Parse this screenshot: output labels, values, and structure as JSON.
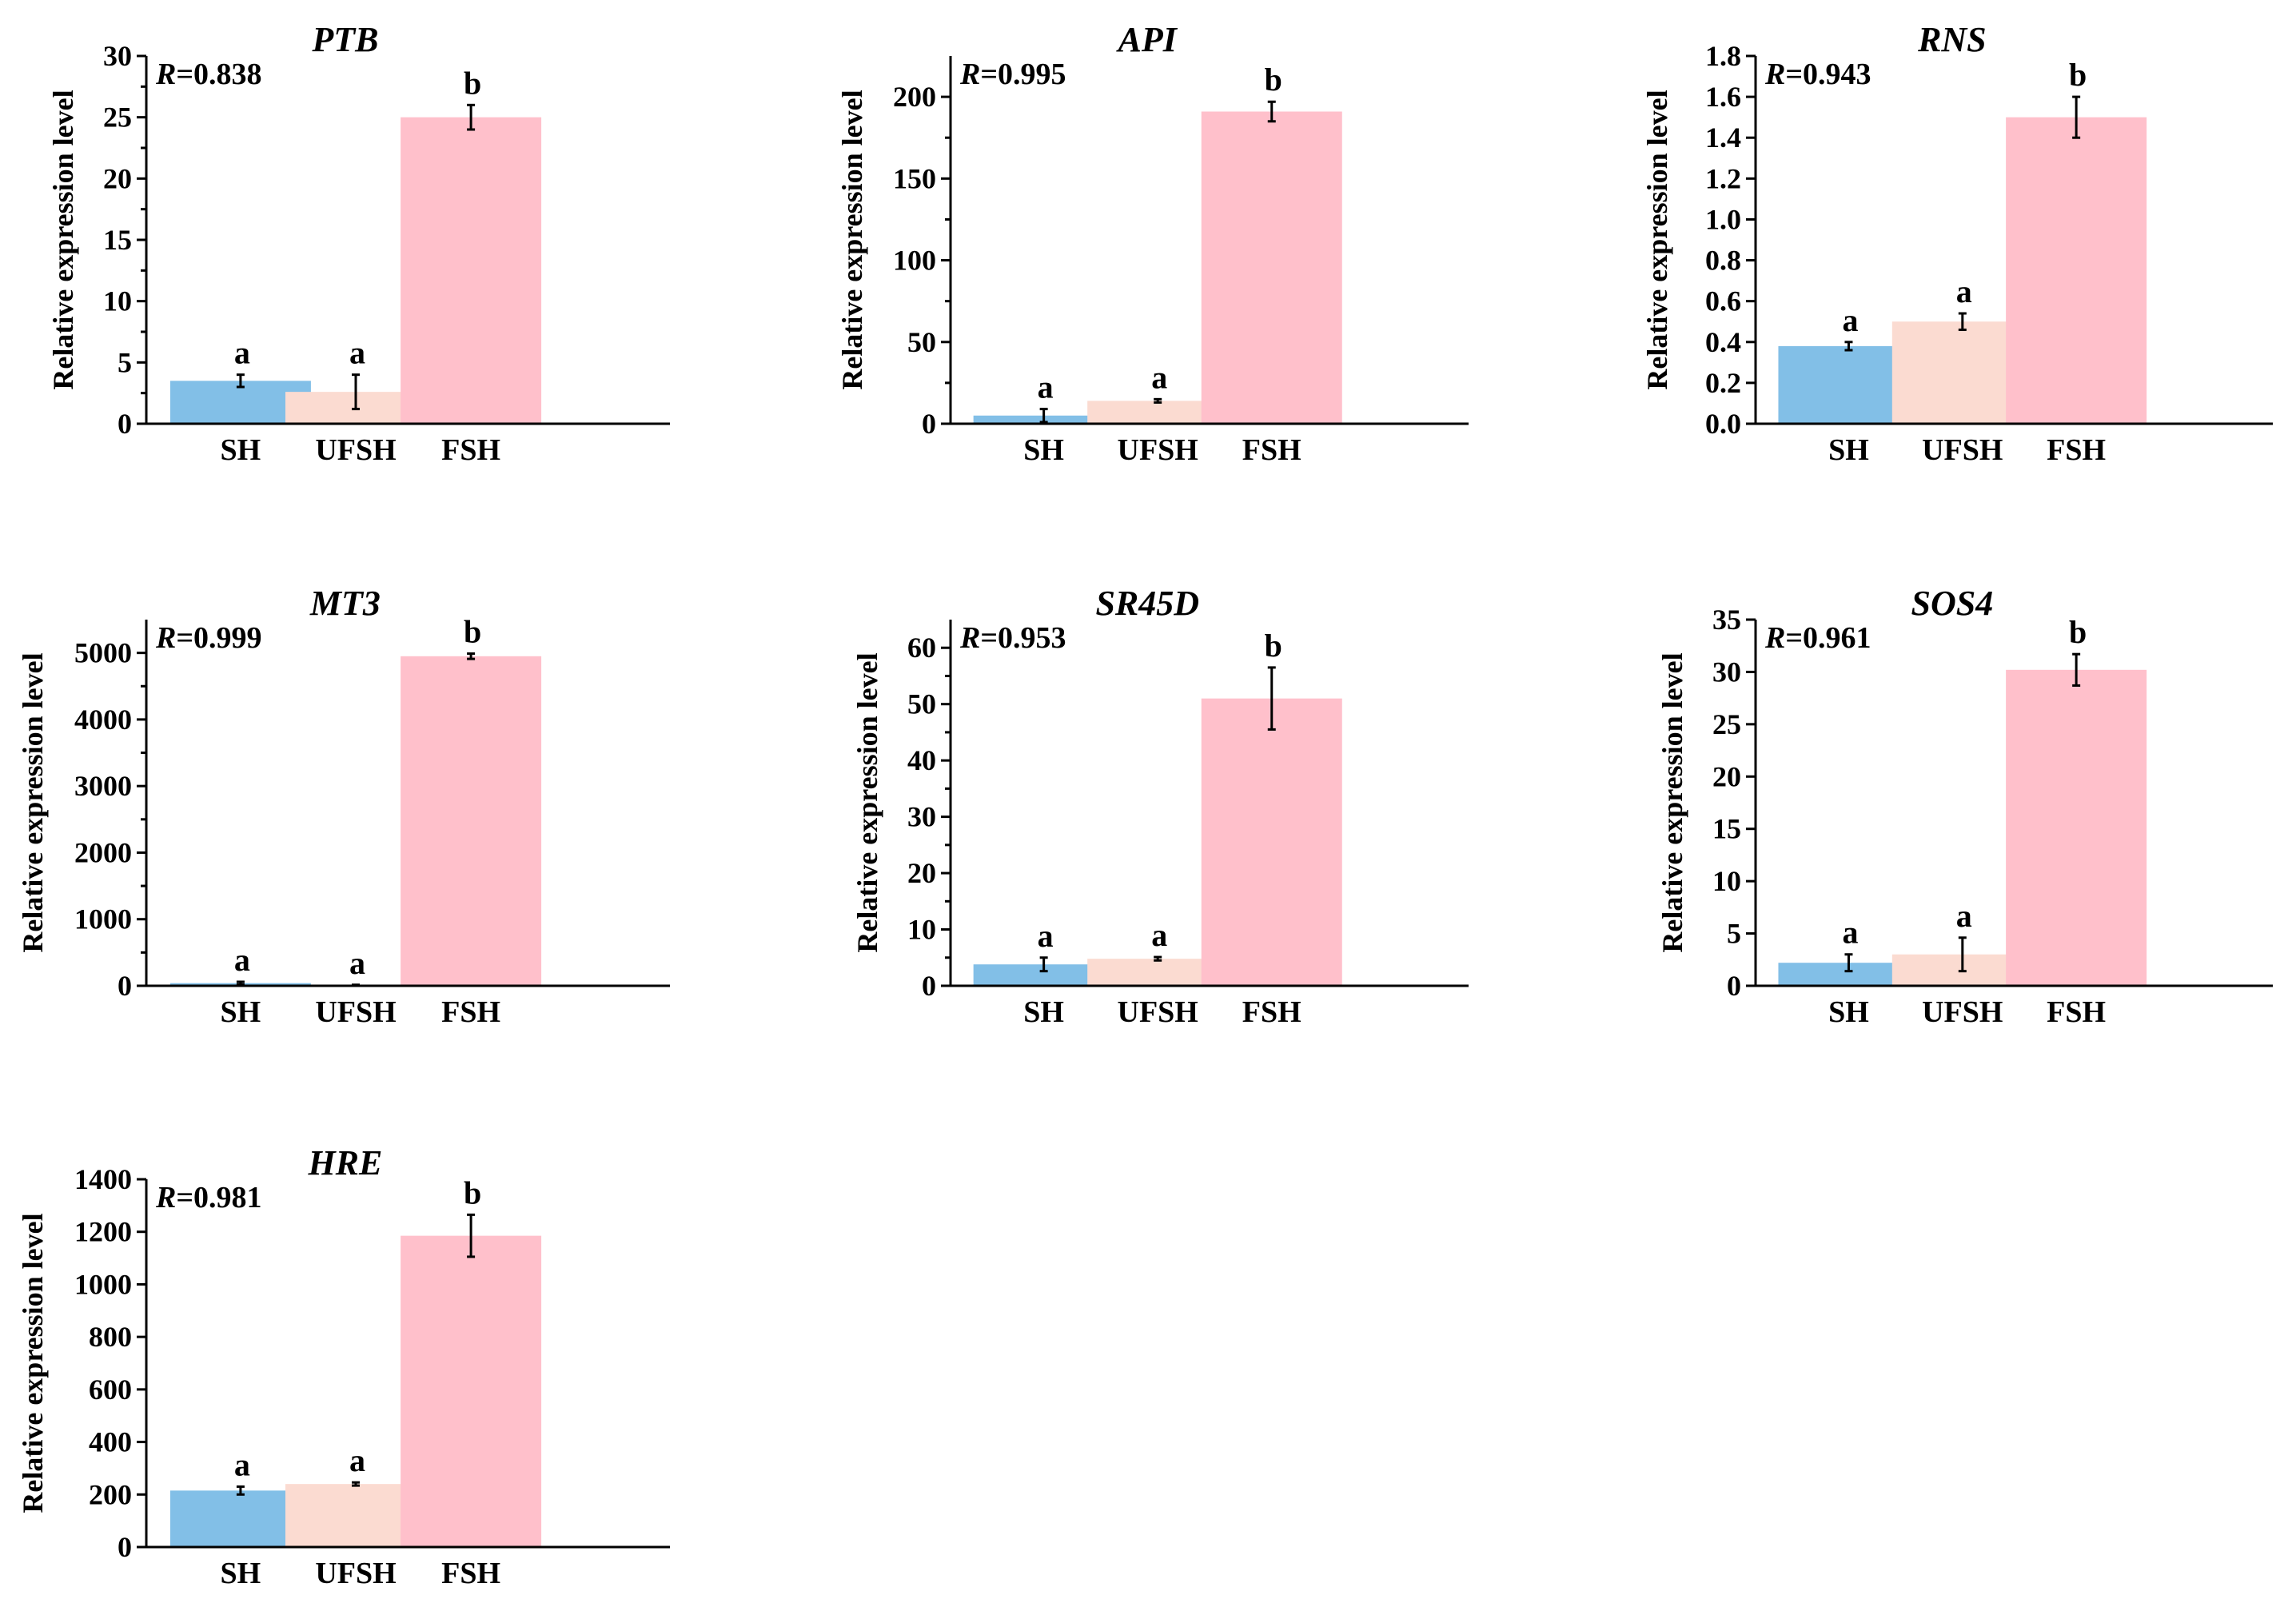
{
  "figure": {
    "colors": {
      "SH": "#82bfe7",
      "UFSH": "#fbdbd1",
      "FSH": "#ffc0cb",
      "axis": "#000000"
    },
    "r_prefix": "R",
    "panels": [
      {
        "title": "PTB",
        "r_value": "=0.838",
        "ylabel": "Relative expression level",
        "categories": [
          "SH",
          "UFSH",
          "FSH"
        ],
        "values": [
          3.5,
          2.6,
          25.0
        ],
        "errors": [
          0.5,
          1.4,
          1.0
        ],
        "significance": [
          "a",
          "a",
          "b"
        ],
        "ylim": [
          0,
          30
        ],
        "yticks": [
          0,
          5,
          10,
          15,
          20,
          25,
          30
        ],
        "ytick_labels": [
          "0",
          "5",
          "10",
          "15",
          "20",
          "25",
          "30"
        ],
        "minor_ticks": true
      },
      {
        "title": "API",
        "r_value": "=0.995",
        "ylabel": "Relative expression level",
        "categories": [
          "SH",
          "UFSH",
          "FSH"
        ],
        "values": [
          5.0,
          14.0,
          191.0
        ],
        "errors": [
          4.0,
          1.0,
          6.0
        ],
        "significance": [
          "a",
          "a",
          "b"
        ],
        "ylim": [
          0,
          225
        ],
        "yticks": [
          0,
          50,
          100,
          150,
          200
        ],
        "ytick_labels": [
          "0",
          "50",
          "100",
          "150",
          "200"
        ],
        "minor_ticks": true
      },
      {
        "title": "RNS",
        "r_value": "=0.943",
        "ylabel": "Relative expression level",
        "categories": [
          "SH",
          "UFSH",
          "FSH"
        ],
        "values": [
          0.38,
          0.5,
          1.5
        ],
        "errors": [
          0.02,
          0.04,
          0.1
        ],
        "significance": [
          "a",
          "a",
          "b"
        ],
        "ylim": [
          0,
          1.8
        ],
        "yticks": [
          0,
          0.2,
          0.4,
          0.6,
          0.8,
          1.0,
          1.2,
          1.4,
          1.6,
          1.8
        ],
        "ytick_labels": [
          "0.0",
          "0.2",
          "0.4",
          "0.6",
          "0.8",
          "1.0",
          "1.2",
          "1.4",
          "1.6",
          "1.8"
        ],
        "minor_ticks": false
      },
      {
        "title": "MT3",
        "r_value": "=0.999",
        "ylabel": "Relative expression level",
        "categories": [
          "SH",
          "UFSH",
          "FSH"
        ],
        "values": [
          40,
          10,
          4950
        ],
        "errors": [
          20,
          5,
          40
        ],
        "significance": [
          "a",
          "a",
          "b"
        ],
        "ylim": [
          0,
          5500
        ],
        "yticks": [
          0,
          1000,
          2000,
          3000,
          4000,
          5000
        ],
        "ytick_labels": [
          "0",
          "1000",
          "2000",
          "3000",
          "4000",
          "5000"
        ],
        "minor_ticks": true
      },
      {
        "title": "SR45D",
        "r_value": "=0.953",
        "ylabel": "Relative expression level",
        "categories": [
          "SH",
          "UFSH",
          "FSH"
        ],
        "values": [
          3.8,
          4.8,
          51.0
        ],
        "errors": [
          1.2,
          0.3,
          5.5
        ],
        "significance": [
          "a",
          "a",
          "b"
        ],
        "ylim": [
          0,
          65
        ],
        "yticks": [
          0,
          10,
          20,
          30,
          40,
          50,
          60
        ],
        "ytick_labels": [
          "0",
          "10",
          "20",
          "30",
          "40",
          "50",
          "60"
        ],
        "minor_ticks": true
      },
      {
        "title": "SOS4",
        "r_value": "=0.961",
        "ylabel": "Relative expression level",
        "categories": [
          "SH",
          "UFSH",
          "FSH"
        ],
        "values": [
          2.2,
          3.0,
          30.2
        ],
        "errors": [
          0.8,
          1.6,
          1.5
        ],
        "significance": [
          "a",
          "a",
          "b"
        ],
        "ylim": [
          0,
          35
        ],
        "yticks": [
          0,
          5,
          10,
          15,
          20,
          25,
          30,
          35
        ],
        "ytick_labels": [
          "0",
          "5",
          "10",
          "15",
          "20",
          "25",
          "30",
          "35"
        ],
        "minor_ticks": false
      },
      {
        "title": "HRE",
        "r_value": "=0.981",
        "ylabel": "Relative expression level",
        "categories": [
          "SH",
          "UFSH",
          "FSH"
        ],
        "values": [
          215,
          240,
          1185
        ],
        "errors": [
          15,
          6,
          80
        ],
        "significance": [
          "a",
          "a",
          "b"
        ],
        "ylim": [
          0,
          1400
        ],
        "yticks": [
          0,
          200,
          400,
          600,
          800,
          1000,
          1200,
          1400
        ],
        "ytick_labels": [
          "0",
          "200",
          "400",
          "600",
          "800",
          "1000",
          "1200",
          "1400"
        ],
        "minor_ticks": false
      }
    ]
  },
  "chart_data": [
    {
      "type": "bar",
      "title": "PTB",
      "annotation": "R=0.838",
      "categories": [
        "SH",
        "UFSH",
        "FSH"
      ],
      "values": [
        3.5,
        2.6,
        25.0
      ],
      "errors": [
        0.5,
        1.4,
        1.0
      ],
      "significance": [
        "a",
        "a",
        "b"
      ],
      "xlabel": "",
      "ylabel": "Relative expression level",
      "ylim": [
        0,
        30
      ]
    },
    {
      "type": "bar",
      "title": "API",
      "annotation": "R=0.995",
      "categories": [
        "SH",
        "UFSH",
        "FSH"
      ],
      "values": [
        5.0,
        14.0,
        191.0
      ],
      "errors": [
        4.0,
        1.0,
        6.0
      ],
      "significance": [
        "a",
        "a",
        "b"
      ],
      "xlabel": "",
      "ylabel": "Relative expression level",
      "ylim": [
        0,
        225
      ]
    },
    {
      "type": "bar",
      "title": "RNS",
      "annotation": "R=0.943",
      "categories": [
        "SH",
        "UFSH",
        "FSH"
      ],
      "values": [
        0.38,
        0.5,
        1.5
      ],
      "errors": [
        0.02,
        0.04,
        0.1
      ],
      "significance": [
        "a",
        "a",
        "b"
      ],
      "xlabel": "",
      "ylabel": "Relative expression level",
      "ylim": [
        0,
        1.8
      ]
    },
    {
      "type": "bar",
      "title": "MT3",
      "annotation": "R=0.999",
      "categories": [
        "SH",
        "UFSH",
        "FSH"
      ],
      "values": [
        40,
        10,
        4950
      ],
      "errors": [
        20,
        5,
        40
      ],
      "significance": [
        "a",
        "a",
        "b"
      ],
      "xlabel": "",
      "ylabel": "Relative expression level",
      "ylim": [
        0,
        5500
      ]
    },
    {
      "type": "bar",
      "title": "SR45D",
      "annotation": "R=0.953",
      "categories": [
        "SH",
        "UFSH",
        "FSH"
      ],
      "values": [
        3.8,
        4.8,
        51.0
      ],
      "errors": [
        1.2,
        0.3,
        5.5
      ],
      "significance": [
        "a",
        "a",
        "b"
      ],
      "xlabel": "",
      "ylabel": "Relative expression level",
      "ylim": [
        0,
        65
      ]
    },
    {
      "type": "bar",
      "title": "SOS4",
      "annotation": "R=0.961",
      "categories": [
        "SH",
        "UFSH",
        "FSH"
      ],
      "values": [
        2.2,
        3.0,
        30.2
      ],
      "errors": [
        0.8,
        1.6,
        1.5
      ],
      "significance": [
        "a",
        "a",
        "b"
      ],
      "xlabel": "",
      "ylabel": "Relative expression level",
      "ylim": [
        0,
        35
      ]
    },
    {
      "type": "bar",
      "title": "HRE",
      "annotation": "R=0.981",
      "categories": [
        "SH",
        "UFSH",
        "FSH"
      ],
      "values": [
        215,
        240,
        1185
      ],
      "errors": [
        15,
        6,
        80
      ],
      "significance": [
        "a",
        "a",
        "b"
      ],
      "xlabel": "",
      "ylabel": "Relative expression level",
      "ylim": [
        0,
        1400
      ]
    }
  ]
}
